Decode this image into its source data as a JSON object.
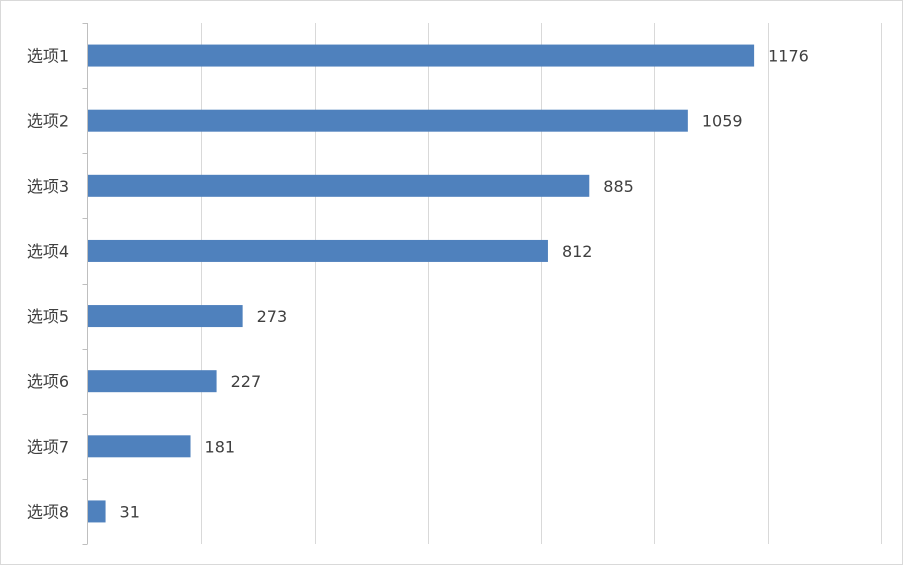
{
  "chart_data": {
    "type": "bar",
    "orientation": "horizontal",
    "categories": [
      "选项1",
      "选项2",
      "选项3",
      "选项4",
      "选项5",
      "选项6",
      "选项7",
      "选项8"
    ],
    "values": [
      1176,
      1059,
      885,
      812,
      273,
      227,
      181,
      31
    ],
    "data_labels": [
      "1176",
      "1059",
      "885",
      "812",
      "273",
      "227",
      "181",
      "31"
    ],
    "title": "",
    "xlabel": "",
    "ylabel": "",
    "xlim": [
      0,
      1400
    ],
    "grid": true,
    "legend": "none",
    "bar_color": "#4f81bd"
  }
}
